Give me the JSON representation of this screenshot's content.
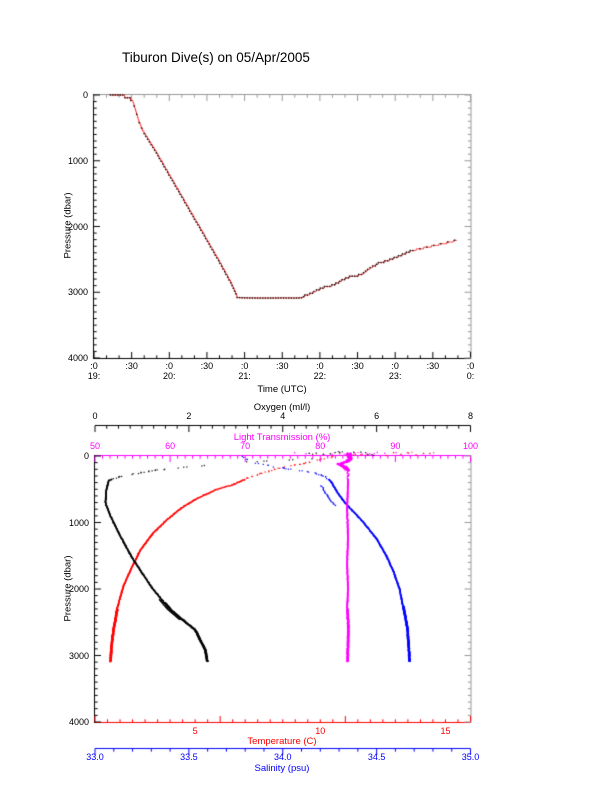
{
  "title": "Tiburon Dive(s) on 05/Apr/2005",
  "colors": {
    "background": "#ffffff",
    "frame_black": "#000000",
    "frame_gray": "#999999",
    "profile_line_red": "#ff2222",
    "marker_black": "#000000",
    "temperature_red": "#ff0000",
    "oxygen_black": "#000000",
    "salinity_blue": "#0000ff",
    "light_magenta": "#ff00ff"
  },
  "chart_data": [
    {
      "id": "dive-depth-vs-time",
      "type": "line",
      "title": "Tiburon Dive(s) on 05/Apr/2005",
      "xlabel": "Time (UTC)",
      "ylabel": "Pressure (dbar)",
      "x_axis": {
        "start_hour_utc": 19,
        "end_hour_utc": 24,
        "major_tick_minutes": 30,
        "minor_tick_minutes": 10,
        "tick_labels": [
          {
            "minute": ":0",
            "hour": "19:"
          },
          {
            "minute": ":30",
            "hour": ""
          },
          {
            "minute": ":0",
            "hour": "20:"
          },
          {
            "minute": ":30",
            "hour": ""
          },
          {
            "minute": ":0",
            "hour": "21:"
          },
          {
            "minute": ":30",
            "hour": ""
          },
          {
            "minute": ":0",
            "hour": "22:"
          },
          {
            "minute": ":30",
            "hour": ""
          },
          {
            "minute": ":0",
            "hour": "23:"
          },
          {
            "minute": ":30",
            "hour": ""
          },
          {
            "minute": ":0",
            "hour": "0:"
          }
        ]
      },
      "y_axis": {
        "min": 0,
        "max": 4000,
        "major": 1000,
        "minor": 100,
        "inverted": true,
        "tick_labels": [
          "0",
          "1000",
          "2000",
          "3000",
          "4000"
        ]
      },
      "series": [
        {
          "name": "dive-pressure-profile",
          "line_color": "#ff2222",
          "marker_color": "#000000",
          "points_minutes_dbar": [
            [
              13,
              5
            ],
            [
              16,
              10
            ],
            [
              19,
              18
            ],
            [
              22,
              30
            ],
            [
              25,
              45
            ],
            [
              27,
              62
            ],
            [
              29,
              82
            ],
            [
              31,
              120
            ],
            [
              33,
              230
            ],
            [
              35,
              370
            ],
            [
              37,
              480
            ],
            [
              39,
              560
            ],
            [
              41,
              620
            ],
            [
              50,
              900
            ],
            [
              60,
              1230
            ],
            [
              70,
              1560
            ],
            [
              80,
              1890
            ],
            [
              90,
              2220
            ],
            [
              100,
              2550
            ],
            [
              110,
              2900
            ],
            [
              114,
              3080
            ],
            [
              120,
              3085
            ],
            [
              130,
              3088
            ],
            [
              140,
              3088
            ],
            [
              150,
              3086
            ],
            [
              160,
              3088
            ],
            [
              165,
              3085
            ],
            [
              171,
              3050
            ],
            [
              178,
              2980
            ],
            [
              184,
              2935
            ],
            [
              191,
              2905
            ],
            [
              199,
              2815
            ],
            [
              205,
              2770
            ],
            [
              213,
              2750
            ],
            [
              219,
              2660
            ],
            [
              227,
              2570
            ],
            [
              235,
              2525
            ],
            [
              243,
              2465
            ],
            [
              252,
              2390
            ],
            [
              259,
              2355
            ],
            [
              284,
              2250
            ],
            [
              289,
              2220
            ]
          ]
        }
      ]
    },
    {
      "id": "ctd-profiles",
      "type": "scatter",
      "ylabel": "Pressure (dbar)",
      "y_axis": {
        "min": 0,
        "max": 4000,
        "major": 1000,
        "minor": 100,
        "inverted": true,
        "tick_labels": [
          "0",
          "1000",
          "2000",
          "3000",
          "4000"
        ]
      },
      "x_axes": {
        "oxygen": {
          "label": "Oxygen (ml/l)",
          "min": 0,
          "max": 8,
          "major": 2,
          "minor": 0.25,
          "color": "#000000",
          "tick_labels": [
            "0",
            "2",
            "4",
            "6",
            "8"
          ]
        },
        "light": {
          "label": "Light Transmission (%)",
          "min": 50,
          "max": 100,
          "major": 10,
          "minor": 1,
          "color": "#ff00ff",
          "tick_labels": [
            "50",
            "60",
            "70",
            "80",
            "90",
            "100"
          ]
        },
        "temperature": {
          "label": "Temperature (C)",
          "min": 1,
          "max": 16,
          "major": 5,
          "minor": 0.5,
          "color": "#ff0000",
          "tick_labels": [
            "5",
            "10",
            "15"
          ]
        },
        "salinity": {
          "label": "Salinity (psu)",
          "min": 33,
          "max": 35,
          "major": 0.5,
          "minor": 0.1,
          "color": "#0000ff",
          "tick_labels": [
            "33.0",
            "33.5",
            "34.0",
            "34.5",
            "35.0"
          ]
        }
      },
      "series": [
        {
          "name": "temperature-profile",
          "axis": "temperature",
          "color": "#ff0000",
          "thick_below_dbar": 2300,
          "points_dbar_value": [
            [
              0,
              10.5
            ],
            [
              40,
              10.0
            ],
            [
              90,
              9.5
            ],
            [
              150,
              8.6
            ],
            [
              240,
              7.7
            ],
            [
              320,
              7.1
            ],
            [
              420,
              6.5
            ],
            [
              500,
              5.8
            ],
            [
              630,
              5.05
            ],
            [
              780,
              4.4
            ],
            [
              950,
              3.85
            ],
            [
              1150,
              3.3
            ],
            [
              1400,
              2.8
            ],
            [
              1660,
              2.45
            ],
            [
              1960,
              2.1
            ],
            [
              2300,
              1.85
            ],
            [
              2600,
              1.7
            ],
            [
              2850,
              1.62
            ],
            [
              3080,
              1.58
            ]
          ],
          "deck_scatter_values": [
            12.6,
            12.9,
            13.2,
            13.5,
            13.8,
            14.1,
            14.35,
            11.0,
            11.3,
            11.6
          ]
        },
        {
          "name": "oxygen-profile",
          "axis": "oxygen",
          "color": "#000000",
          "thick_below_dbar": 2200,
          "points_dbar_value": [
            [
              0,
              5.4
            ],
            [
              30,
              4.6
            ],
            [
              60,
              3.8
            ],
            [
              90,
              3.1
            ],
            [
              135,
              2.3
            ],
            [
              180,
              1.65
            ],
            [
              210,
              1.25
            ],
            [
              250,
              0.9
            ],
            [
              300,
              0.5
            ],
            [
              360,
              0.28
            ],
            [
              500,
              0.23
            ],
            [
              700,
              0.21
            ],
            [
              900,
              0.32
            ],
            [
              1200,
              0.53
            ],
            [
              1500,
              0.76
            ],
            [
              1750,
              0.99
            ],
            [
              2000,
              1.23
            ],
            [
              2300,
              1.59
            ],
            [
              2450,
              1.84
            ],
            [
              2610,
              2.12
            ],
            [
              2760,
              2.22
            ],
            [
              2910,
              2.33
            ],
            [
              3080,
              2.37
            ]
          ],
          "deck_scatter_values": [
            4.55,
            4.7,
            4.85,
            5.0,
            5.1,
            5.2,
            5.35,
            5.5,
            5.65,
            5.8,
            5.92
          ]
        },
        {
          "name": "salinity-profile",
          "axis": "salinity",
          "color": "#0000ff",
          "thick_below_dbar": 2250,
          "points_dbar_value": [
            [
              0,
              33.78
            ],
            [
              40,
              33.8
            ],
            [
              80,
              33.83
            ],
            [
              120,
              33.89
            ],
            [
              160,
              33.97
            ],
            [
              200,
              34.06
            ],
            [
              250,
              34.17
            ],
            [
              300,
              34.22
            ],
            [
              360,
              34.25
            ],
            [
              450,
              34.27
            ],
            [
              550,
              34.29
            ],
            [
              700,
              34.33
            ],
            [
              850,
              34.38
            ],
            [
              1000,
              34.43
            ],
            [
              1250,
              34.5
            ],
            [
              1500,
              34.55
            ],
            [
              1750,
              34.59
            ],
            [
              2000,
              34.62
            ],
            [
              2300,
              34.64
            ],
            [
              2600,
              34.66
            ],
            [
              3080,
              34.67
            ]
          ],
          "deck_scatter_values": []
        },
        {
          "name": "light-transmission-profile",
          "axis": "light",
          "color": "#ff00ff",
          "thick_below_dbar": 2300,
          "surface_blob": true,
          "points_dbar_value": [
            [
              0,
              83.8
            ],
            [
              40,
              84.0
            ],
            [
              80,
              83.6
            ],
            [
              120,
              82.4
            ],
            [
              160,
              83.2
            ],
            [
              210,
              83.6
            ],
            [
              400,
              83.6
            ],
            [
              800,
              83.5
            ],
            [
              1200,
              83.6
            ],
            [
              1600,
              83.5
            ],
            [
              2000,
              83.6
            ],
            [
              2300,
              83.5
            ],
            [
              2600,
              83.6
            ],
            [
              3080,
              83.5
            ]
          ],
          "deck_scatter_values": [
            76.5,
            78,
            79.5,
            80.5,
            81.5,
            82.5,
            84.5,
            85.5,
            86.5,
            87.5,
            88.5,
            90,
            91.5,
            93.5
          ]
        }
      ]
    }
  ]
}
